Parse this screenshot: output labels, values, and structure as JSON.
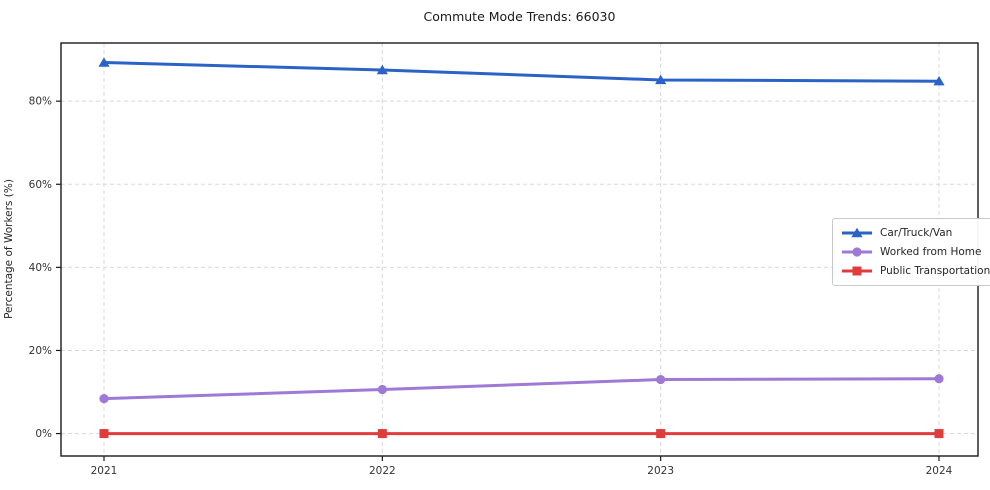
{
  "chart_data": {
    "type": "line",
    "title": "Commute Mode Trends: 66030",
    "xlabel": "",
    "ylabel": "Percentage of Workers (%)",
    "x": [
      2021,
      2022,
      2023,
      2024
    ],
    "x_tick_labels": [
      "2021",
      "2022",
      "2023",
      "2024"
    ],
    "y_ticks": [
      0,
      20,
      40,
      60,
      80
    ],
    "y_tick_labels": [
      "0%",
      "20%",
      "40%",
      "60%",
      "80%"
    ],
    "ylim": [
      -5.4,
      94.0
    ],
    "grid": "dashed horizontal and vertical at ticks",
    "legend_position": "middle-right",
    "series": [
      {
        "name": "Car/Truck/Van",
        "marker": "triangle",
        "color": "#2b62c6",
        "values": [
          89.3,
          87.5,
          85.1,
          84.8
        ]
      },
      {
        "name": "Worked from Home",
        "marker": "circle",
        "color": "#9e7ad6",
        "values": [
          8.4,
          10.6,
          13.0,
          13.2
        ]
      },
      {
        "name": "Public Transportation",
        "marker": "square",
        "color": "#e13c3c",
        "values": [
          0.0,
          0.0,
          0.0,
          0.0
        ]
      }
    ]
  },
  "colors": {
    "grid": "#d8d8d8",
    "axis": "#1a1a1a",
    "tick_label": "#333333",
    "title": "#1a1a1a",
    "legend_border": "#c9c9c9",
    "legend_bg": "#ffffff"
  }
}
